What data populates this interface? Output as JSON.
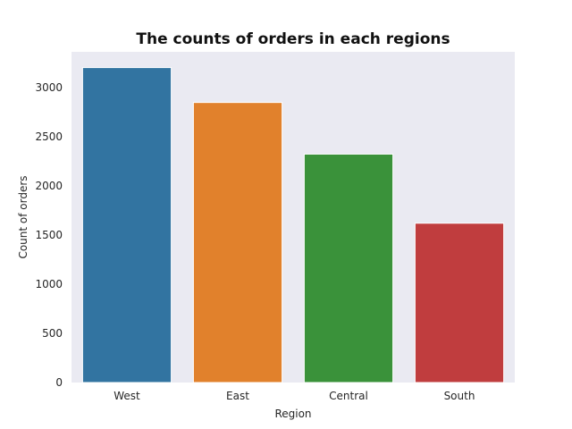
{
  "chart_data": {
    "type": "bar",
    "title": "The counts of orders in each regions",
    "xlabel": "Region",
    "ylabel": "Count of orders",
    "categories": [
      "West",
      "East",
      "Central",
      "South"
    ],
    "values": [
      3203,
      2848,
      2323,
      1620
    ],
    "colors": [
      "#3274a1",
      "#e1812c",
      "#3a923a",
      "#c03d3e"
    ],
    "ylim": [
      0,
      3363
    ],
    "yticks": [
      0,
      500,
      1000,
      1500,
      2000,
      2500,
      3000
    ],
    "grid": false,
    "background": "#eaeaf2",
    "legend": "none"
  }
}
